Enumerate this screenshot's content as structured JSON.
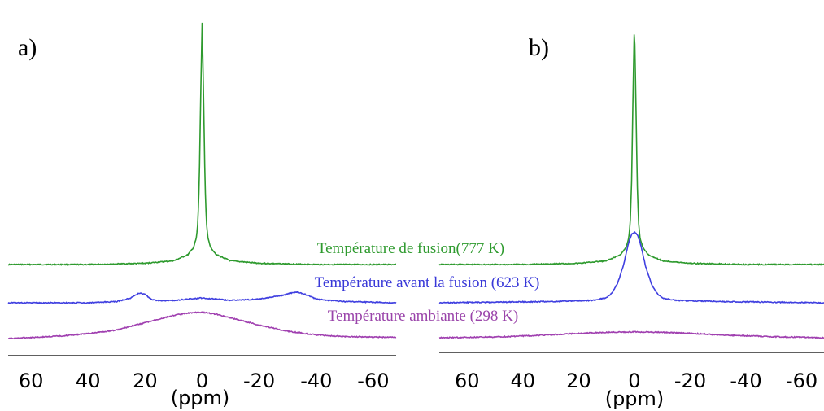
{
  "chart_data": [
    {
      "type": "line",
      "panel_label": "a)",
      "xlabel": "(ppm)",
      "xlim": [
        68,
        -68
      ],
      "x_reversed": true,
      "xticks": [
        60,
        40,
        20,
        0,
        -20,
        -40,
        -60
      ],
      "xtick_labels": [
        "60",
        "40",
        "20",
        "0",
        "-20",
        "-40",
        "-60"
      ],
      "grid": false,
      "series": [
        {
          "name": "Température de fusion(777 K)",
          "color": "#2e9a2e",
          "x": [
            68,
            40,
            20,
            10,
            5,
            3,
            2,
            1.5,
            1,
            0.5,
            0,
            -0.5,
            -1,
            -1.5,
            -2,
            -3,
            -5,
            -10,
            -20,
            -40,
            -68
          ],
          "y": [
            0.01,
            0.01,
            0.015,
            0.025,
            0.05,
            0.08,
            0.12,
            0.18,
            0.35,
            0.7,
            1.0,
            0.7,
            0.35,
            0.18,
            0.12,
            0.08,
            0.05,
            0.025,
            0.015,
            0.01,
            0.01
          ]
        },
        {
          "name": "Température avant la fusion (623 K)",
          "color": "#4040e0",
          "x": [
            68,
            40,
            30,
            25,
            22,
            20,
            18,
            15,
            10,
            5,
            0,
            -5,
            -10,
            -20,
            -28,
            -33,
            -36,
            -40,
            -50,
            -68
          ],
          "y": [
            0.0,
            0.0,
            0.005,
            0.02,
            0.04,
            0.035,
            0.015,
            0.008,
            0.01,
            0.015,
            0.02,
            0.015,
            0.01,
            0.015,
            0.03,
            0.045,
            0.035,
            0.015,
            0.005,
            0.0
          ]
        },
        {
          "name": "Température ambiante (298 K)",
          "color": "#a040b0",
          "x": [
            68,
            50,
            40,
            30,
            20,
            10,
            5,
            0,
            -5,
            -10,
            -20,
            -30,
            -40,
            -50,
            -68
          ],
          "y": [
            0.0,
            0.01,
            0.02,
            0.035,
            0.065,
            0.095,
            0.105,
            0.108,
            0.1,
            0.085,
            0.055,
            0.03,
            0.015,
            0.008,
            0.005
          ]
        }
      ]
    },
    {
      "type": "line",
      "panel_label": "b)",
      "xlabel": "(ppm)",
      "xlim": [
        70,
        -68
      ],
      "x_reversed": true,
      "xticks": [
        60,
        40,
        20,
        0,
        -20,
        -40,
        -60
      ],
      "xtick_labels": [
        "60",
        "40",
        "20",
        "0",
        "-20",
        "-40",
        "-60"
      ],
      "grid": false,
      "series": [
        {
          "name": "Température de fusion(777 K)",
          "color": "#2e9a2e",
          "x": [
            70,
            40,
            20,
            10,
            5,
            3,
            2,
            1.5,
            1,
            0.5,
            0,
            -0.5,
            -1,
            -1.5,
            -2,
            -3,
            -5,
            -10,
            -20,
            -40,
            -68
          ],
          "y": [
            0.01,
            0.01,
            0.015,
            0.025,
            0.05,
            0.08,
            0.12,
            0.18,
            0.35,
            0.7,
            1.0,
            0.7,
            0.35,
            0.18,
            0.12,
            0.08,
            0.05,
            0.025,
            0.015,
            0.01,
            0.01
          ]
        },
        {
          "name": "Température avant la fusion (623 K)",
          "color": "#4040e0",
          "x": [
            70,
            30,
            15,
            10,
            8,
            6,
            4,
            2,
            1,
            0,
            -1,
            -2,
            -4,
            -6,
            -8,
            -10,
            -15,
            -30,
            -68
          ],
          "y": [
            0.0,
            0.005,
            0.01,
            0.02,
            0.04,
            0.08,
            0.15,
            0.25,
            0.28,
            0.29,
            0.28,
            0.25,
            0.15,
            0.08,
            0.04,
            0.02,
            0.01,
            0.005,
            0.0
          ]
        },
        {
          "name": "Température ambiante (298 K)",
          "color": "#a040b0",
          "x": [
            70,
            50,
            40,
            30,
            20,
            10,
            0,
            -10,
            -20,
            -30,
            -40,
            -50,
            -60,
            -68
          ],
          "y": [
            0.0,
            0.003,
            0.007,
            0.012,
            0.018,
            0.022,
            0.024,
            0.022,
            0.018,
            0.012,
            0.008,
            0.004,
            0.002,
            0.0
          ]
        }
      ]
    }
  ]
}
